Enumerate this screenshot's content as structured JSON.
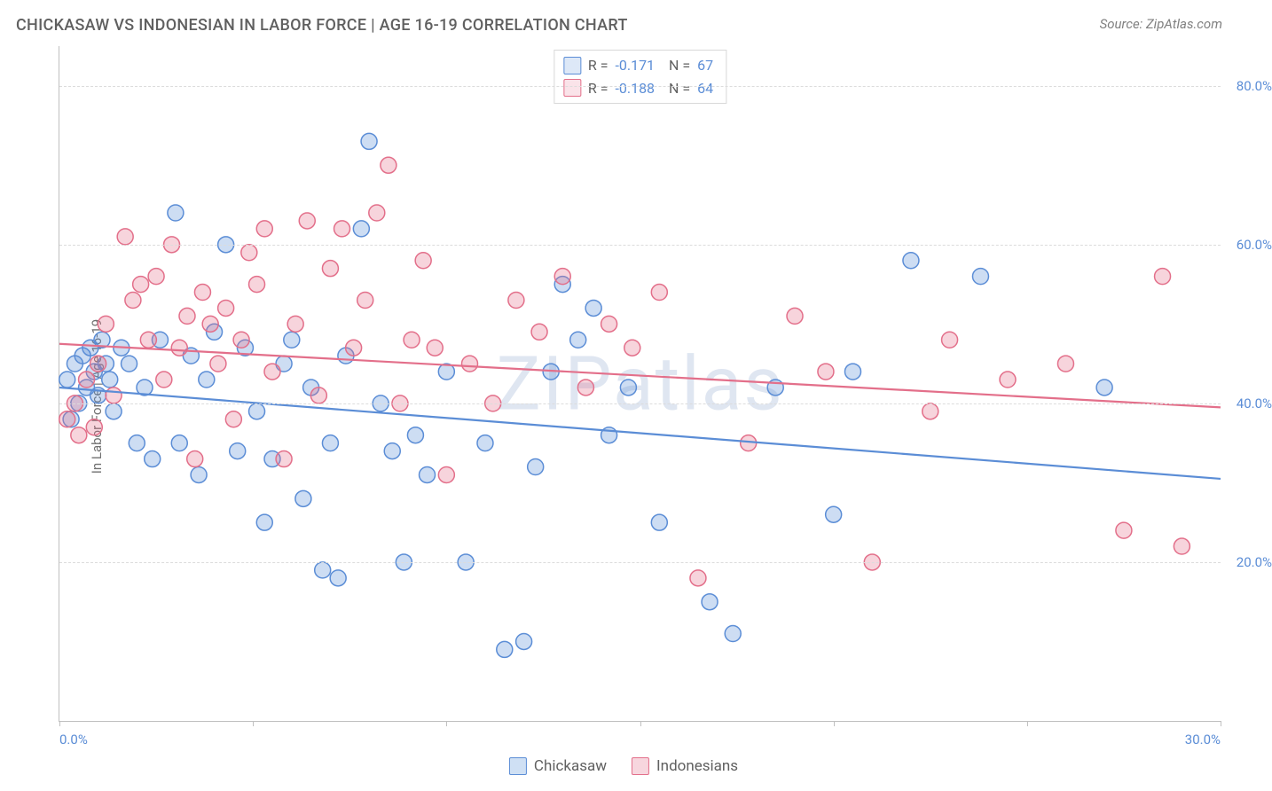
{
  "title": "CHICKASAW VS INDONESIAN IN LABOR FORCE | AGE 16-19 CORRELATION CHART",
  "source": "Source: ZipAtlas.com",
  "watermark": "ZIPatlas",
  "ylabel": "In Labor Force | Age 16-19",
  "chart": {
    "type": "scatter",
    "xlim": [
      0,
      30
    ],
    "ylim": [
      0,
      85
    ],
    "ytick_values": [
      20,
      40,
      60,
      80
    ],
    "ytick_labels": [
      "20.0%",
      "40.0%",
      "60.0%",
      "80.0%"
    ],
    "xtick_values": [
      0,
      5,
      10,
      15,
      20,
      25,
      30
    ],
    "xtick_labels_shown": {
      "0": "0.0%",
      "30": "30.0%"
    },
    "grid_color": "#dcdcdc",
    "axis_color": "#c0c0c0",
    "background_color": "#ffffff",
    "marker_radius": 9,
    "marker_stroke_width": 1.5,
    "marker_fill_opacity": 0.3,
    "series": [
      {
        "name": "Chickasaw",
        "color": "#5b8dd6",
        "fill": "#a9c5ea",
        "R": "-0.171",
        "N": "67",
        "trend": {
          "x1": 0,
          "y1": 42.0,
          "x2": 30,
          "y2": 30.5,
          "width": 2.2
        },
        "points": [
          [
            0.2,
            43
          ],
          [
            0.3,
            38
          ],
          [
            0.4,
            45
          ],
          [
            0.5,
            40
          ],
          [
            0.6,
            46
          ],
          [
            0.7,
            42
          ],
          [
            0.8,
            47
          ],
          [
            0.9,
            44
          ],
          [
            1.0,
            41
          ],
          [
            1.1,
            48
          ],
          [
            1.2,
            45
          ],
          [
            1.3,
            43
          ],
          [
            1.4,
            39
          ],
          [
            1.6,
            47
          ],
          [
            1.8,
            45
          ],
          [
            2.0,
            35
          ],
          [
            2.2,
            42
          ],
          [
            2.4,
            33
          ],
          [
            2.6,
            48
          ],
          [
            3.0,
            64
          ],
          [
            3.1,
            35
          ],
          [
            3.4,
            46
          ],
          [
            3.6,
            31
          ],
          [
            3.8,
            43
          ],
          [
            4.0,
            49
          ],
          [
            4.3,
            60
          ],
          [
            4.6,
            34
          ],
          [
            4.8,
            47
          ],
          [
            5.1,
            39
          ],
          [
            5.3,
            25
          ],
          [
            5.5,
            33
          ],
          [
            5.8,
            45
          ],
          [
            6.0,
            48
          ],
          [
            6.3,
            28
          ],
          [
            6.5,
            42
          ],
          [
            6.8,
            19
          ],
          [
            7.0,
            35
          ],
          [
            7.2,
            18
          ],
          [
            7.4,
            46
          ],
          [
            7.8,
            62
          ],
          [
            8.0,
            73
          ],
          [
            8.3,
            40
          ],
          [
            8.6,
            34
          ],
          [
            8.9,
            20
          ],
          [
            9.2,
            36
          ],
          [
            9.5,
            31
          ],
          [
            10.0,
            44
          ],
          [
            10.5,
            20
          ],
          [
            11.0,
            35
          ],
          [
            11.5,
            9
          ],
          [
            12.0,
            10
          ],
          [
            12.3,
            32
          ],
          [
            12.7,
            44
          ],
          [
            13.0,
            55
          ],
          [
            13.4,
            48
          ],
          [
            13.8,
            52
          ],
          [
            14.2,
            36
          ],
          [
            14.7,
            42
          ],
          [
            15.5,
            25
          ],
          [
            16.8,
            15
          ],
          [
            17.4,
            11
          ],
          [
            18.5,
            42
          ],
          [
            20.0,
            26
          ],
          [
            20.5,
            44
          ],
          [
            22.0,
            58
          ],
          [
            23.8,
            56
          ],
          [
            27.0,
            42
          ]
        ]
      },
      {
        "name": "Indonesians",
        "color": "#e36f8a",
        "fill": "#f3bac7",
        "R": "-0.188",
        "N": "64",
        "trend": {
          "x1": 0,
          "y1": 47.5,
          "x2": 30,
          "y2": 39.5,
          "width": 2.2
        },
        "points": [
          [
            0.2,
            38
          ],
          [
            0.4,
            40
          ],
          [
            0.5,
            36
          ],
          [
            0.7,
            43
          ],
          [
            0.9,
            37
          ],
          [
            1.0,
            45
          ],
          [
            1.2,
            50
          ],
          [
            1.4,
            41
          ],
          [
            1.7,
            61
          ],
          [
            1.9,
            53
          ],
          [
            2.1,
            55
          ],
          [
            2.3,
            48
          ],
          [
            2.5,
            56
          ],
          [
            2.7,
            43
          ],
          [
            2.9,
            60
          ],
          [
            3.1,
            47
          ],
          [
            3.3,
            51
          ],
          [
            3.5,
            33
          ],
          [
            3.7,
            54
          ],
          [
            3.9,
            50
          ],
          [
            4.1,
            45
          ],
          [
            4.3,
            52
          ],
          [
            4.5,
            38
          ],
          [
            4.7,
            48
          ],
          [
            4.9,
            59
          ],
          [
            5.1,
            55
          ],
          [
            5.3,
            62
          ],
          [
            5.5,
            44
          ],
          [
            5.8,
            33
          ],
          [
            6.1,
            50
          ],
          [
            6.4,
            63
          ],
          [
            6.7,
            41
          ],
          [
            7.0,
            57
          ],
          [
            7.3,
            62
          ],
          [
            7.6,
            47
          ],
          [
            7.9,
            53
          ],
          [
            8.2,
            64
          ],
          [
            8.5,
            70
          ],
          [
            8.8,
            40
          ],
          [
            9.1,
            48
          ],
          [
            9.4,
            58
          ],
          [
            9.7,
            47
          ],
          [
            10.0,
            31
          ],
          [
            10.6,
            45
          ],
          [
            11.2,
            40
          ],
          [
            11.8,
            53
          ],
          [
            12.4,
            49
          ],
          [
            13.0,
            56
          ],
          [
            13.6,
            42
          ],
          [
            14.2,
            50
          ],
          [
            14.8,
            47
          ],
          [
            15.5,
            54
          ],
          [
            16.5,
            18
          ],
          [
            17.8,
            35
          ],
          [
            19.0,
            51
          ],
          [
            19.8,
            44
          ],
          [
            21.0,
            20
          ],
          [
            22.5,
            39
          ],
          [
            23.0,
            48
          ],
          [
            24.5,
            43
          ],
          [
            26.0,
            45
          ],
          [
            27.5,
            24
          ],
          [
            28.5,
            56
          ],
          [
            29.0,
            22
          ]
        ]
      }
    ]
  },
  "legend_bottom": [
    {
      "label": "Chickasaw",
      "stroke": "#5b8dd6",
      "fill": "#cfe0f4"
    },
    {
      "label": "Indonesians",
      "stroke": "#e36f8a",
      "fill": "#f7d6de"
    }
  ]
}
